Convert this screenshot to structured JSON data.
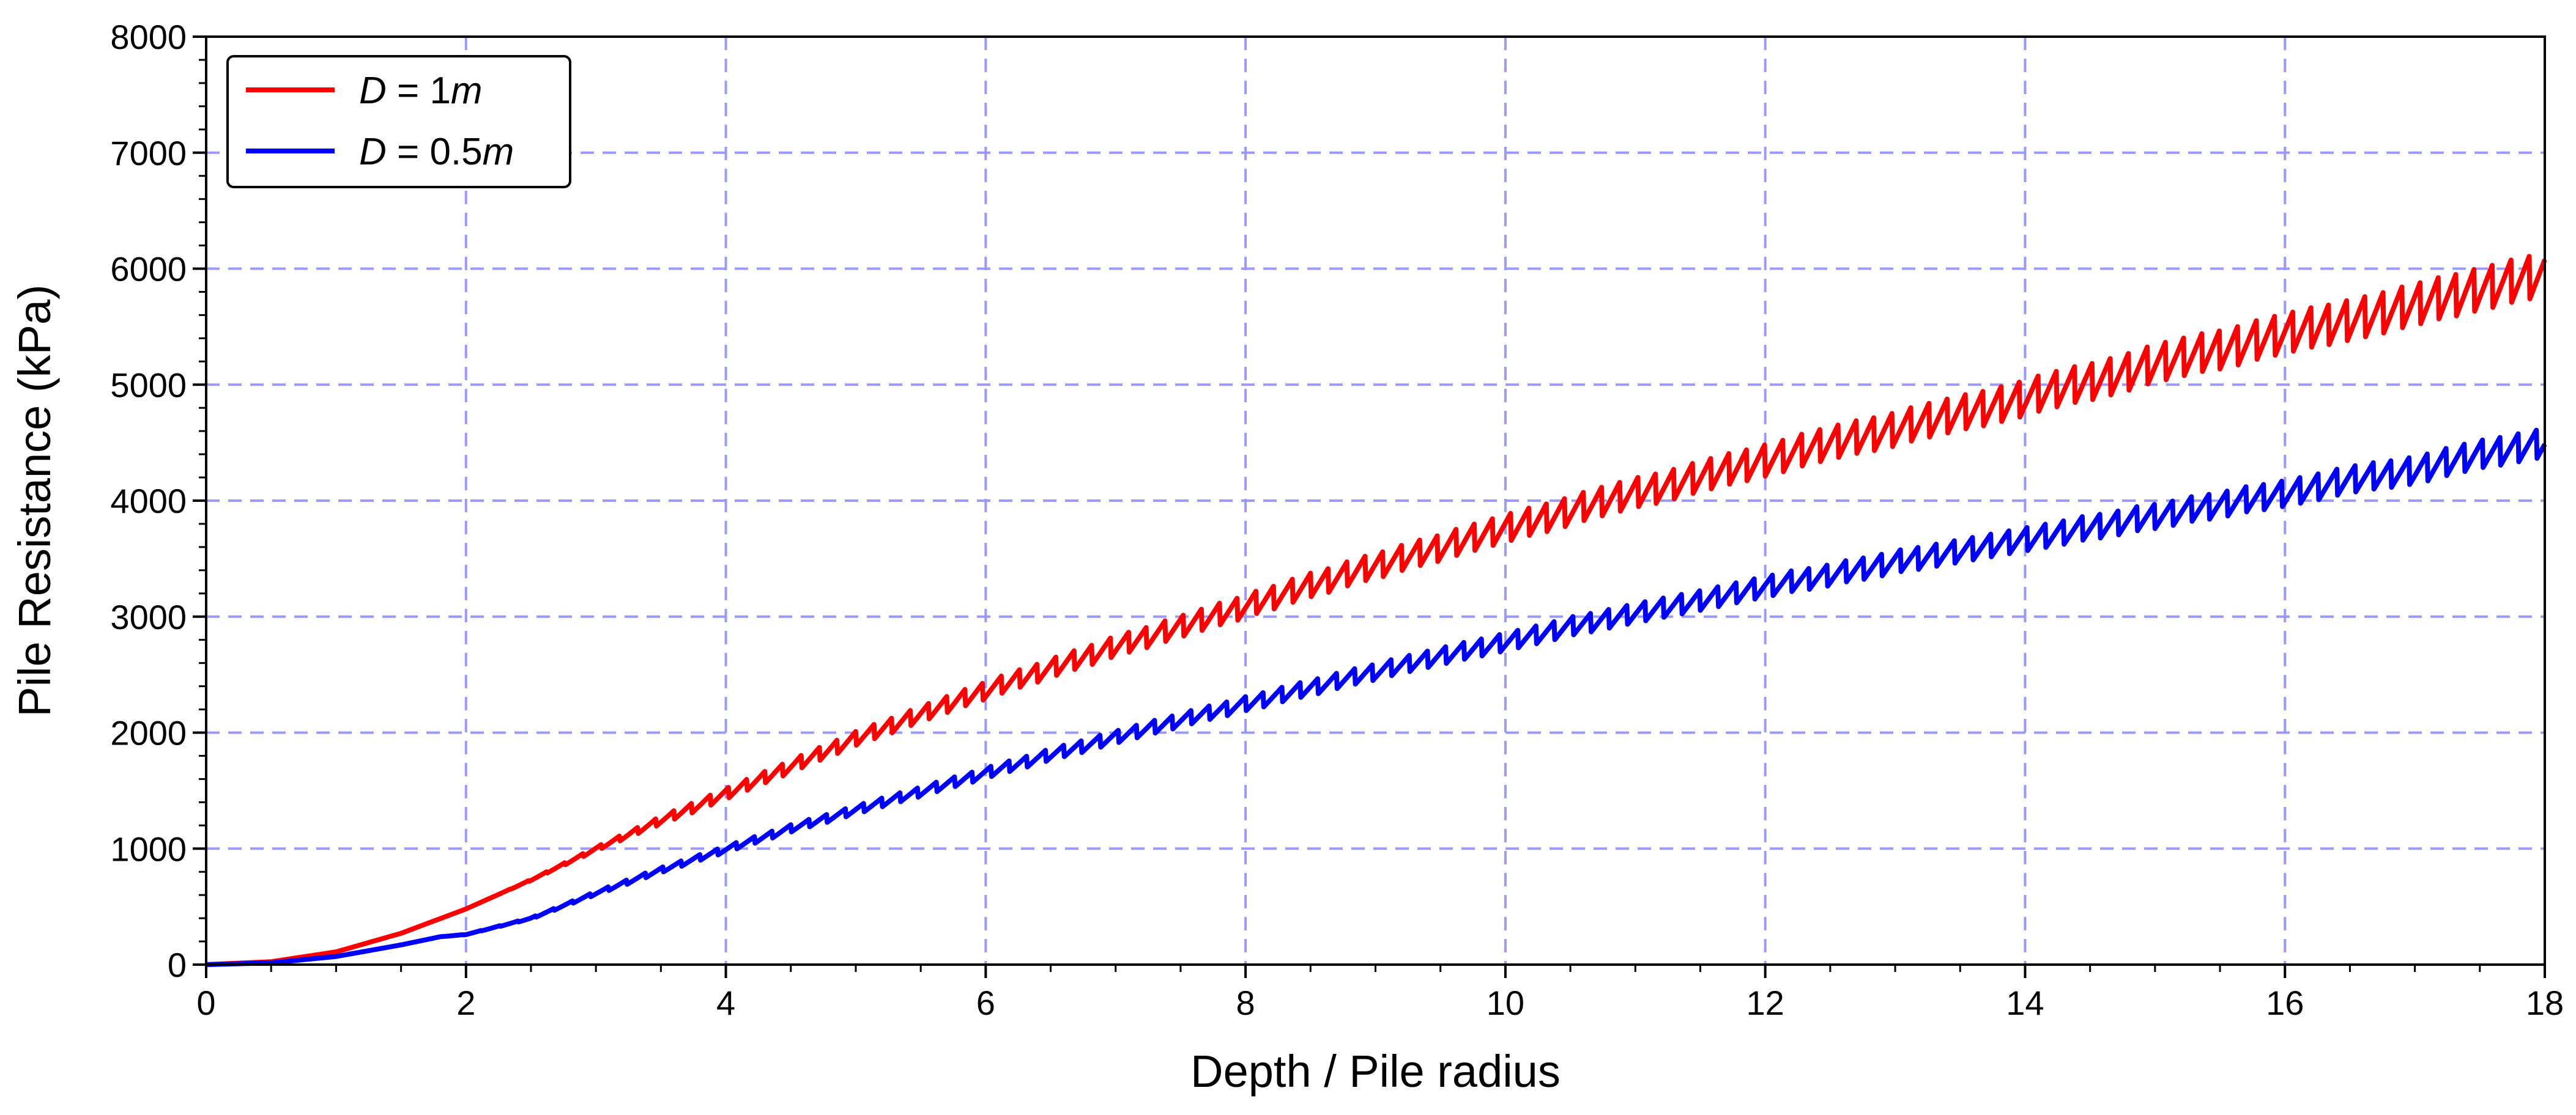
{
  "chart_data": {
    "type": "line",
    "xlabel": "Depth / Pile radius",
    "ylabel": "Pile Resistance (kPa)",
    "xlim": [
      0,
      18
    ],
    "ylim": [
      0,
      8000
    ],
    "x_ticks": [
      "0",
      "2",
      "4",
      "6",
      "8",
      "10",
      "12",
      "14",
      "16",
      "18"
    ],
    "y_ticks": [
      "0",
      "1000",
      "2000",
      "3000",
      "4000",
      "5000",
      "6000",
      "7000",
      "8000"
    ],
    "grid": true,
    "grid_color": "#9999ff",
    "legend_placement": "top-left",
    "series": [
      {
        "name": "D = 1m",
        "name_parts": {
          "var": "D",
          "eq": " = 1",
          "unit": "m"
        },
        "color": "#ff0000",
        "x": [
          0,
          0.5,
          1,
          1.5,
          2,
          2.5,
          3,
          3.5,
          4,
          4.5,
          5,
          5.5,
          6,
          6.5,
          7,
          7.5,
          8,
          8.5,
          9,
          9.5,
          10,
          10.5,
          11,
          11.5,
          12,
          12.5,
          13,
          13.5,
          14,
          14.5,
          15,
          15.5,
          16,
          16.5,
          17,
          17.5,
          18
        ],
        "y": [
          0,
          25,
          110,
          270,
          480,
          730,
          1000,
          1250,
          1480,
          1720,
          1960,
          2170,
          2380,
          2570,
          2760,
          2930,
          3110,
          3290,
          3460,
          3620,
          3780,
          3940,
          4090,
          4230,
          4380,
          4520,
          4650,
          4780,
          4920,
          5060,
          5210,
          5340,
          5470,
          5600,
          5720,
          5870,
          5980
        ]
      },
      {
        "name": "D = 0.5m",
        "name_parts": {
          "var": "D",
          "eq": " = 0.5",
          "unit": "m"
        },
        "color": "#0000ff",
        "x": [
          0,
          0.5,
          1,
          1.5,
          1.8,
          2,
          2.5,
          3,
          3.5,
          4,
          4.5,
          5,
          5.5,
          6,
          6.5,
          7,
          7.5,
          8,
          8.5,
          9,
          9.5,
          10,
          10.5,
          11,
          11.5,
          12,
          12.5,
          13,
          13.5,
          14,
          14.5,
          15,
          15.5,
          16,
          16.5,
          17,
          17.5,
          18
        ],
        "y": [
          0,
          15,
          70,
          170,
          240,
          260,
          400,
          620,
          820,
          1000,
          1180,
          1340,
          1500,
          1660,
          1820,
          1970,
          2120,
          2260,
          2400,
          2540,
          2670,
          2800,
          2930,
          3050,
          3160,
          3280,
          3380,
          3490,
          3590,
          3690,
          3790,
          3890,
          3990,
          4090,
          4200,
          4290,
          4420,
          4530
        ]
      }
    ]
  }
}
